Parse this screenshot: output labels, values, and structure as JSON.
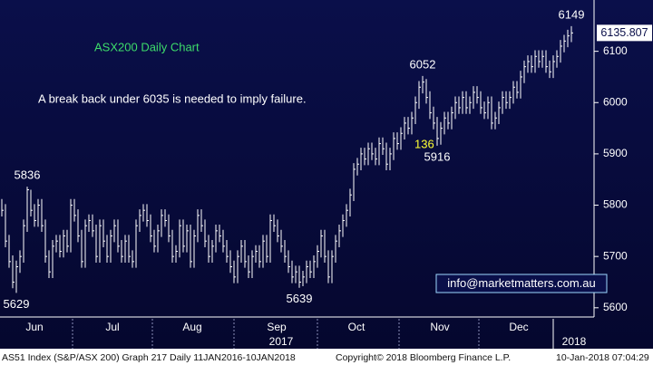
{
  "chart_data": {
    "type": "hlc",
    "title": "ASX200 Daily Chart",
    "annotations": [
      {
        "text": "A break back under 6035 is needed to imply failure."
      },
      {
        "text": "136",
        "color": "#ffff33"
      }
    ],
    "color": "#ffffff",
    "title_color": "#3ddc6a",
    "high": [
      5812,
      5802,
      5742,
      5702,
      5692,
      5712,
      5772,
      5836,
      5830,
      5802,
      5812,
      5812,
      5772,
      5712,
      5732,
      5742,
      5742,
      5752,
      5752,
      5812,
      5812,
      5792,
      5752,
      5772,
      5782,
      5782,
      5762,
      5772,
      5772,
      5742,
      5752,
      5772,
      5772,
      5732,
      5742,
      5742,
      5712,
      5772,
      5792,
      5802,
      5802,
      5782,
      5752,
      5762,
      5792,
      5792,
      5782,
      5752,
      5722,
      5772,
      5772,
      5762,
      5762,
      5752,
      5792,
      5792,
      5772,
      5742,
      5732,
      5762,
      5762,
      5752,
      5732,
      5712,
      5692,
      5712,
      5732,
      5732,
      5702,
      5712,
      5722,
      5722,
      5742,
      5742,
      5782,
      5782,
      5772,
      5752,
      5732,
      5712,
      5692,
      5682,
      5682,
      5672,
      5692,
      5692,
      5702,
      5722,
      5752,
      5752,
      5712,
      5712,
      5742,
      5762,
      5782,
      5802,
      5832,
      5882,
      5892,
      5912,
      5912,
      5922,
      5922,
      5912,
      5932,
      5932,
      5922,
      5912,
      5942,
      5942,
      5952,
      5972,
      5972,
      5982,
      6012,
      6042,
      6052,
      6046,
      6022,
      5992,
      5972,
      5962,
      5982,
      5982,
      5992,
      6012,
      6012,
      6022,
      6022,
      6012,
      6032,
      6032,
      6022,
      6002,
      6012,
      6012,
      5982,
      6002,
      6022,
      6022,
      6022,
      6042,
      6042,
      6062,
      6082,
      6092,
      6092,
      6102,
      6102,
      6102,
      6102,
      6082,
      6092,
      6102,
      6122,
      6132,
      6142,
      6149
    ],
    "low": [
      5778,
      5718,
      5678,
      5638,
      5629,
      5668,
      5688,
      5748,
      5778,
      5758,
      5758,
      5748,
      5688,
      5658,
      5658,
      5708,
      5698,
      5698,
      5708,
      5708,
      5768,
      5728,
      5678,
      5678,
      5748,
      5738,
      5688,
      5688,
      5718,
      5688,
      5688,
      5728,
      5708,
      5688,
      5688,
      5688,
      5678,
      5678,
      5748,
      5768,
      5758,
      5728,
      5708,
      5708,
      5738,
      5758,
      5728,
      5688,
      5688,
      5698,
      5708,
      5708,
      5678,
      5678,
      5728,
      5748,
      5718,
      5688,
      5688,
      5708,
      5728,
      5708,
      5688,
      5668,
      5648,
      5648,
      5688,
      5678,
      5658,
      5658,
      5688,
      5678,
      5678,
      5688,
      5688,
      5748,
      5728,
      5708,
      5688,
      5668,
      5648,
      5648,
      5639,
      5642,
      5648,
      5658,
      5658,
      5678,
      5698,
      5688,
      5648,
      5648,
      5688,
      5718,
      5738,
      5758,
      5778,
      5808,
      5858,
      5868,
      5878,
      5878,
      5888,
      5878,
      5878,
      5898,
      5868,
      5868,
      5888,
      5908,
      5908,
      5928,
      5938,
      5938,
      5958,
      5988,
      6018,
      5998,
      5968,
      5948,
      5916,
      5918,
      5938,
      5948,
      5948,
      5968,
      5978,
      5978,
      5978,
      5978,
      5988,
      5998,
      5978,
      5968,
      5968,
      5948,
      5948,
      5958,
      5978,
      5988,
      5988,
      5998,
      6008,
      6008,
      6038,
      6058,
      6058,
      6058,
      6068,
      6068,
      6058,
      6048,
      6048,
      6068,
      6078,
      6098,
      6108,
      6118
    ],
    "close": [
      5790,
      5730,
      5690,
      5650,
      5680,
      5700,
      5760,
      5830,
      5790,
      5770,
      5800,
      5760,
      5700,
      5670,
      5720,
      5730,
      5710,
      5740,
      5720,
      5800,
      5780,
      5740,
      5690,
      5760,
      5770,
      5750,
      5700,
      5760,
      5730,
      5700,
      5740,
      5760,
      5720,
      5700,
      5730,
      5700,
      5690,
      5760,
      5780,
      5790,
      5770,
      5740,
      5720,
      5750,
      5780,
      5770,
      5740,
      5700,
      5710,
      5760,
      5720,
      5750,
      5690,
      5740,
      5780,
      5760,
      5730,
      5700,
      5720,
      5750,
      5740,
      5720,
      5700,
      5680,
      5660,
      5700,
      5720,
      5690,
      5670,
      5700,
      5710,
      5690,
      5730,
      5700,
      5770,
      5760,
      5740,
      5720,
      5700,
      5680,
      5660,
      5670,
      5650,
      5660,
      5680,
      5670,
      5690,
      5710,
      5740,
      5700,
      5660,
      5700,
      5730,
      5750,
      5770,
      5790,
      5820,
      5870,
      5880,
      5900,
      5890,
      5910,
      5900,
      5890,
      5920,
      5910,
      5880,
      5900,
      5930,
      5920,
      5940,
      5960,
      5950,
      5970,
      6000,
      6030,
      6040,
      6010,
      5980,
      5960,
      5930,
      5950,
      5970,
      5960,
      5980,
      6000,
      5990,
      6010,
      5990,
      6000,
      6020,
      6010,
      5990,
      5980,
      6000,
      5960,
      5970,
      5990,
      6010,
      6000,
      6010,
      6030,
      6020,
      6050,
      6070,
      6080,
      6070,
      6090,
      6080,
      6090,
      6070,
      6060,
      6080,
      6090,
      6110,
      6120,
      6130,
      6135.807
    ],
    "labeled": {
      "high": [
        7,
        116,
        157
      ],
      "low": [
        4,
        82,
        120
      ]
    },
    "xlim": [
      -0.5,
      163.25
    ],
    "xticks": [
      {
        "value": 9,
        "label": "Jun"
      },
      {
        "value": 30.5,
        "label": "Jul"
      },
      {
        "value": 52.5,
        "label": "Aug"
      },
      {
        "value": 75.75,
        "label": "Sep"
      },
      {
        "value": 97.75,
        "label": "Oct"
      },
      {
        "value": 120.75,
        "label": "Nov"
      },
      {
        "value": 142.5,
        "label": "Dec"
      }
    ],
    "years": [
      "2017",
      "2018"
    ],
    "ylim": [
      5582,
      6200
    ],
    "yticks": [
      5600,
      5700,
      5800,
      5900,
      6000,
      6100
    ],
    "contact": "info@marketmatters.com.au",
    "footer": [
      "AS51 Index (S&P/ASX 200) Graph 217  Daily 11JAN2016-10JAN2018",
      "Copyright© 2018 Bloomberg Finance L.P.",
      "10-Jan-2018 07:04:29"
    ]
  }
}
